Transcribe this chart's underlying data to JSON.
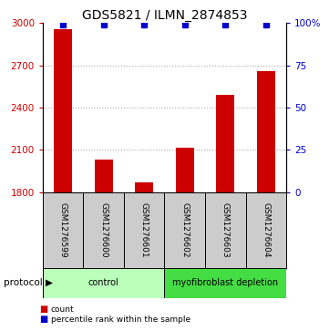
{
  "title": "GDS5821 / ILMN_2874853",
  "samples": [
    "GSM1276599",
    "GSM1276600",
    "GSM1276601",
    "GSM1276602",
    "GSM1276603",
    "GSM1276604"
  ],
  "counts": [
    2960,
    2030,
    1870,
    2115,
    2490,
    2660
  ],
  "percentile_ranks": [
    99,
    99,
    99,
    99,
    99,
    99
  ],
  "ylim_left": [
    1800,
    3000
  ],
  "ylim_right": [
    0,
    100
  ],
  "yticks_left": [
    1800,
    2100,
    2400,
    2700,
    3000
  ],
  "yticks_right": [
    0,
    25,
    50,
    75,
    100
  ],
  "ytick_labels_right": [
    "0",
    "25",
    "50",
    "75",
    "100%"
  ],
  "bar_color": "#cc0000",
  "dot_color": "#0000cc",
  "grid_color": "#aaaaaa",
  "protocol_groups": [
    {
      "label": "control",
      "indices": [
        0,
        1,
        2
      ],
      "color": "#bbffbb"
    },
    {
      "label": "myofibroblast depletion",
      "indices": [
        3,
        4,
        5
      ],
      "color": "#44dd44"
    }
  ],
  "sample_box_color": "#cccccc",
  "protocol_label": "protocol",
  "legend_count_label": "count",
  "legend_percentile_label": "percentile rank within the sample",
  "title_fontsize": 10,
  "tick_label_fontsize": 7.5,
  "sample_label_fontsize": 6.5,
  "bar_width": 0.45
}
